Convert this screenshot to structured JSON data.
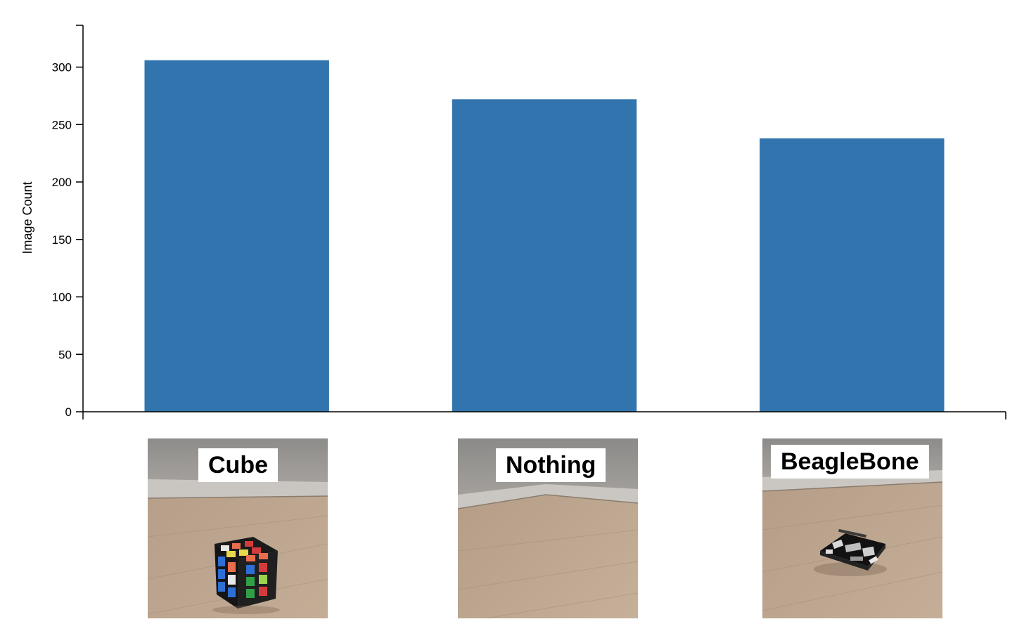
{
  "chart_data": {
    "type": "bar",
    "categories": [
      "Cube",
      "Nothing",
      "BeagleBone"
    ],
    "values": [
      306,
      272,
      238
    ],
    "title": "",
    "xlabel": "",
    "ylabel": "Image Count",
    "ylim": [
      0,
      335
    ],
    "yticks": [
      0,
      50,
      100,
      150,
      200,
      250,
      300
    ],
    "ytick_labels": [
      "0",
      "50",
      "100",
      "150",
      "200",
      "250",
      "300"
    ],
    "bar_color": "#3274ad",
    "grid": false,
    "legend": "none"
  },
  "thumbnails": [
    {
      "label": "Cube",
      "content": "rubiks-cube-photo"
    },
    {
      "label": "Nothing",
      "content": "empty-floor-photo"
    },
    {
      "label": "BeagleBone",
      "content": "beaglebone-board-photo"
    }
  ]
}
